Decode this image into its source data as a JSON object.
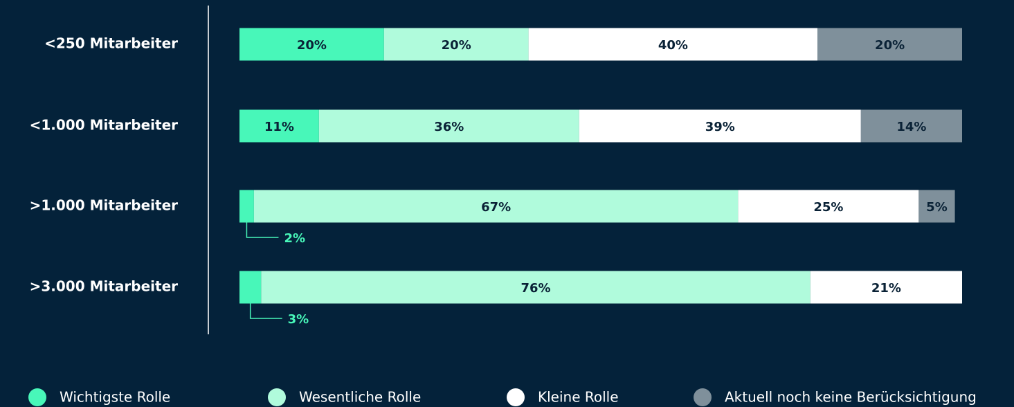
{
  "chart_data": {
    "type": "stacked-bar-horizontal",
    "categories": [
      "<250 Mitarbeiter",
      "<1.000 Mitarbeiter",
      ">1.000 Mitarbeiter",
      ">3.000 Mitarbeiter"
    ],
    "xlim": [
      0,
      100
    ],
    "series": [
      {
        "name": "Wichtigste Rolle",
        "color": "#48f7b9",
        "values": [
          20,
          11,
          2,
          3
        ],
        "value_labels": [
          "20%",
          "11%",
          "2%",
          "3%"
        ]
      },
      {
        "name": "Wesentliche Rolle",
        "color": "#b0fbdc",
        "values": [
          20,
          36,
          67,
          76
        ],
        "value_labels": [
          "20%",
          "36%",
          "67%",
          "76%"
        ]
      },
      {
        "name": "Kleine Rolle",
        "color": "#ffffff",
        "values": [
          40,
          39,
          25,
          21
        ],
        "value_labels": [
          "40%",
          "39%",
          "25%",
          "21%"
        ]
      },
      {
        "name": "Aktuell noch keine Berücksichtigung",
        "color": "#7f909b",
        "values": [
          20,
          14,
          5,
          null
        ],
        "value_labels": [
          "20%",
          "14%",
          "5%",
          null
        ]
      }
    ]
  }
}
